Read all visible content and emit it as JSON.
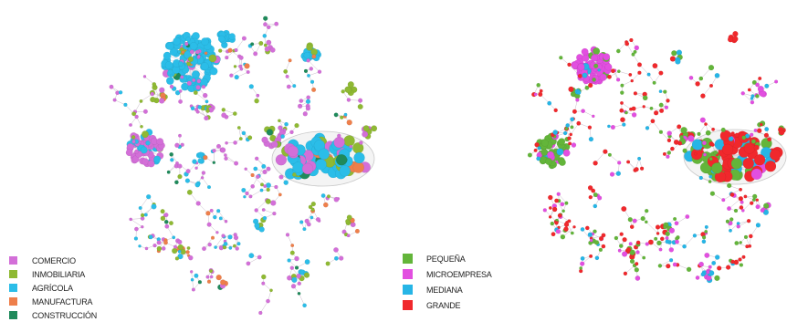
{
  "colors": {
    "edge": "#c9bcc9",
    "hull": "#c8c8c8"
  },
  "panels": [
    {
      "legend": [
        {
          "label": "COMERCIO",
          "color": "#d36fd8"
        },
        {
          "label": "INMOBILIARIA",
          "color": "#8fb933"
        },
        {
          "label": "AGRÍCOLA",
          "color": "#2bbde8"
        },
        {
          "label": "MANUFACTURA",
          "color": "#ee7f4b"
        },
        {
          "label": "CONSTRUCCIÓN",
          "color": "#1f8a5b"
        }
      ]
    },
    {
      "legend": [
        {
          "label": "PEQUEÑA",
          "color": "#63b53a"
        },
        {
          "label": "MICROEMPRESA",
          "color": "#e24fe0"
        },
        {
          "label": "MEDIANA",
          "color": "#26b5e6"
        },
        {
          "label": "GRANDE",
          "color": "#f0282c"
        }
      ]
    }
  ]
}
